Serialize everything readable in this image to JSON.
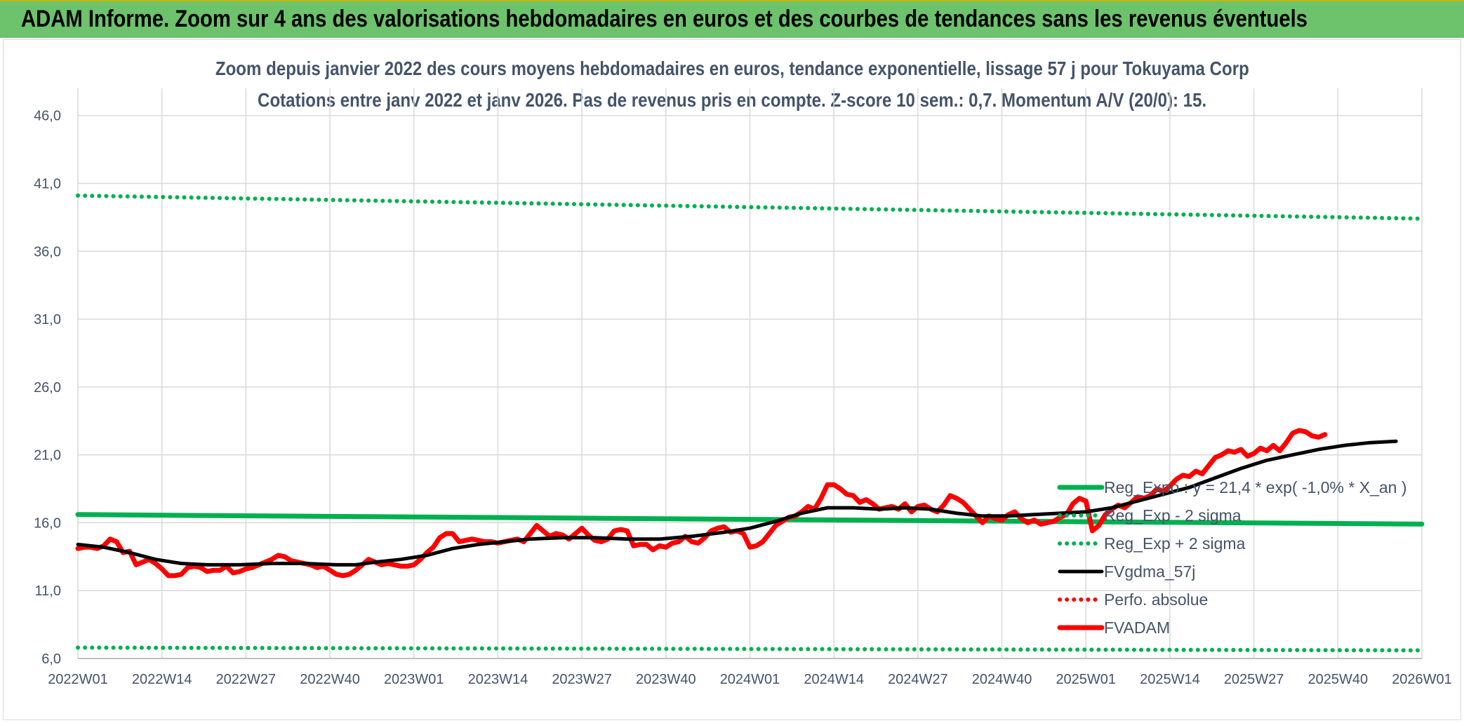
{
  "banner": {
    "title": "ADAM Informe. Zoom sur 4 ans des valorisations hebdomadaires en euros et des courbes de tendances sans les revenus éventuels"
  },
  "chart_data": {
    "type": "line",
    "title": "Zoom depuis janvier 2022 des cours moyens hebdomadaires en euros, tendance exponentielle, lissage 57 j pour Tokuyama Corp",
    "subtitle": "Cotations entre janv 2022 et janv 2026. Pas de revenus pris en compte. Z-score 10 sem.: 0,7. Momentum A/V (20/0): 15.",
    "ylim": [
      6,
      48
    ],
    "y_ticks": [
      "6,0",
      "11,0",
      "16,0",
      "21,0",
      "26,0",
      "31,0",
      "36,0",
      "41,0",
      "46,0"
    ],
    "y_tick_values": [
      6,
      11,
      16,
      21,
      26,
      31,
      36,
      41,
      46
    ],
    "x_ticks": [
      "2022W01",
      "2022W14",
      "2022W27",
      "2022W40",
      "2023W01",
      "2023W14",
      "2023W27",
      "2023W40",
      "2024W01",
      "2024W14",
      "2024W27",
      "2024W40",
      "2025W01",
      "2025W14",
      "2025W27",
      "2025W40",
      "2026W01"
    ],
    "x_range_weeks": [
      0,
      208
    ],
    "grid": true,
    "legend_position": "right",
    "series": [
      {
        "name": "Reg_Expo : y = 21,4 * exp( -1,0% *  X_an )",
        "color": "#00b050",
        "style": "solid",
        "points": [
          [
            0,
            16.6
          ],
          [
            208,
            15.9
          ]
        ]
      },
      {
        "name": "Reg_Exp - 2 sigma",
        "color": "#00b050",
        "style": "dotted",
        "points": [
          [
            0,
            6.8
          ],
          [
            208,
            6.6
          ]
        ]
      },
      {
        "name": "Reg_Exp + 2 sigma",
        "color": "#00b050",
        "style": "dotted",
        "points": [
          [
            0,
            40.1
          ],
          [
            208,
            38.4
          ]
        ]
      },
      {
        "name": "FVgdma_57j",
        "color": "#000000",
        "style": "solid",
        "points": [
          [
            0,
            14.4
          ],
          [
            4,
            14.2
          ],
          [
            8,
            13.8
          ],
          [
            12,
            13.3
          ],
          [
            16,
            13.0
          ],
          [
            20,
            12.9
          ],
          [
            25,
            12.9
          ],
          [
            30,
            13.0
          ],
          [
            35,
            13.0
          ],
          [
            40,
            12.9
          ],
          [
            43,
            12.9
          ],
          [
            46,
            13.1
          ],
          [
            50,
            13.3
          ],
          [
            54,
            13.6
          ],
          [
            58,
            14.1
          ],
          [
            62,
            14.4
          ],
          [
            66,
            14.6
          ],
          [
            70,
            14.8
          ],
          [
            75,
            14.9
          ],
          [
            80,
            14.9
          ],
          [
            85,
            14.8
          ],
          [
            90,
            14.8
          ],
          [
            95,
            15.0
          ],
          [
            100,
            15.3
          ],
          [
            104,
            15.6
          ],
          [
            108,
            16.1
          ],
          [
            112,
            16.7
          ],
          [
            116,
            17.1
          ],
          [
            120,
            17.1
          ],
          [
            124,
            17.0
          ],
          [
            128,
            17.1
          ],
          [
            132,
            17.0
          ],
          [
            136,
            16.7
          ],
          [
            140,
            16.5
          ],
          [
            144,
            16.5
          ],
          [
            148,
            16.6
          ],
          [
            152,
            16.7
          ],
          [
            156,
            16.8
          ],
          [
            160,
            17.1
          ],
          [
            164,
            17.6
          ],
          [
            168,
            18.1
          ],
          [
            172,
            18.6
          ],
          [
            176,
            19.3
          ],
          [
            180,
            20.0
          ],
          [
            184,
            20.6
          ],
          [
            188,
            21.0
          ],
          [
            192,
            21.4
          ],
          [
            196,
            21.7
          ],
          [
            200,
            21.9
          ],
          [
            204,
            22.0
          ]
        ]
      },
      {
        "name": "Perfo. absolue",
        "color": "#ff0000",
        "style": "dotted",
        "points": []
      },
      {
        "name": "FVADAM",
        "color": "#ff0000",
        "style": "solid",
        "points": [
          [
            0,
            14.1
          ],
          [
            1,
            14.2
          ],
          [
            2,
            14.2
          ],
          [
            3,
            14.1
          ],
          [
            4,
            14.3
          ],
          [
            5,
            14.8
          ],
          [
            6,
            14.6
          ],
          [
            7,
            13.8
          ],
          [
            8,
            13.9
          ],
          [
            9,
            12.9
          ],
          [
            10,
            13.1
          ],
          [
            11,
            13.3
          ],
          [
            12,
            13.0
          ],
          [
            13,
            12.6
          ],
          [
            14,
            12.1
          ],
          [
            15,
            12.1
          ],
          [
            16,
            12.2
          ],
          [
            17,
            12.7
          ],
          [
            18,
            12.8
          ],
          [
            19,
            12.7
          ],
          [
            20,
            12.4
          ],
          [
            21,
            12.5
          ],
          [
            22,
            12.5
          ],
          [
            23,
            12.8
          ],
          [
            24,
            12.3
          ],
          [
            25,
            12.4
          ],
          [
            26,
            12.6
          ],
          [
            27,
            12.7
          ],
          [
            28,
            12.9
          ],
          [
            29,
            13.1
          ],
          [
            30,
            13.3
          ],
          [
            31,
            13.6
          ],
          [
            32,
            13.5
          ],
          [
            33,
            13.2
          ],
          [
            34,
            13.1
          ],
          [
            35,
            13.0
          ],
          [
            36,
            12.9
          ],
          [
            37,
            12.7
          ],
          [
            38,
            12.8
          ],
          [
            39,
            12.5
          ],
          [
            40,
            12.2
          ],
          [
            41,
            12.1
          ],
          [
            42,
            12.2
          ],
          [
            43,
            12.5
          ],
          [
            44,
            12.9
          ],
          [
            45,
            13.3
          ],
          [
            46,
            13.1
          ],
          [
            47,
            12.9
          ],
          [
            48,
            13.0
          ],
          [
            49,
            12.9
          ],
          [
            50,
            12.8
          ],
          [
            51,
            12.8
          ],
          [
            52,
            12.9
          ],
          [
            53,
            13.3
          ],
          [
            54,
            13.8
          ],
          [
            55,
            14.2
          ],
          [
            56,
            14.9
          ],
          [
            57,
            15.2
          ],
          [
            58,
            15.2
          ],
          [
            59,
            14.6
          ],
          [
            60,
            14.7
          ],
          [
            61,
            14.8
          ],
          [
            62,
            14.7
          ],
          [
            63,
            14.6
          ],
          [
            64,
            14.6
          ],
          [
            65,
            14.5
          ],
          [
            66,
            14.6
          ],
          [
            67,
            14.7
          ],
          [
            68,
            14.8
          ],
          [
            69,
            14.6
          ],
          [
            70,
            15.2
          ],
          [
            71,
            15.8
          ],
          [
            72,
            15.4
          ],
          [
            73,
            15.0
          ],
          [
            74,
            15.2
          ],
          [
            75,
            15.1
          ],
          [
            76,
            14.8
          ],
          [
            77,
            15.2
          ],
          [
            78,
            15.6
          ],
          [
            79,
            15.1
          ],
          [
            80,
            14.7
          ],
          [
            81,
            14.6
          ],
          [
            82,
            14.8
          ],
          [
            83,
            15.4
          ],
          [
            84,
            15.5
          ],
          [
            85,
            15.4
          ],
          [
            86,
            14.3
          ],
          [
            87,
            14.4
          ],
          [
            88,
            14.4
          ],
          [
            89,
            14.0
          ],
          [
            90,
            14.3
          ],
          [
            91,
            14.2
          ],
          [
            92,
            14.5
          ],
          [
            93,
            14.6
          ],
          [
            94,
            15.0
          ],
          [
            95,
            14.6
          ],
          [
            96,
            14.5
          ],
          [
            97,
            14.9
          ],
          [
            98,
            15.4
          ],
          [
            99,
            15.6
          ],
          [
            100,
            15.7
          ],
          [
            101,
            15.3
          ],
          [
            102,
            15.4
          ],
          [
            103,
            15.2
          ],
          [
            104,
            14.2
          ],
          [
            105,
            14.3
          ],
          [
            106,
            14.6
          ],
          [
            107,
            15.2
          ],
          [
            108,
            15.8
          ],
          [
            109,
            16.1
          ],
          [
            110,
            16.4
          ],
          [
            111,
            16.5
          ],
          [
            112,
            16.8
          ],
          [
            113,
            17.2
          ],
          [
            114,
            17.0
          ],
          [
            115,
            17.8
          ],
          [
            116,
            18.8
          ],
          [
            117,
            18.8
          ],
          [
            118,
            18.5
          ],
          [
            119,
            18.1
          ],
          [
            120,
            18.0
          ],
          [
            121,
            17.5
          ],
          [
            122,
            17.7
          ],
          [
            123,
            17.4
          ],
          [
            124,
            17.0
          ],
          [
            125,
            17.1
          ],
          [
            126,
            17.2
          ],
          [
            127,
            17.0
          ],
          [
            128,
            17.4
          ],
          [
            129,
            16.8
          ],
          [
            130,
            17.2
          ],
          [
            131,
            17.3
          ],
          [
            132,
            17.0
          ],
          [
            133,
            16.8
          ],
          [
            134,
            17.3
          ],
          [
            135,
            18.0
          ],
          [
            136,
            17.8
          ],
          [
            137,
            17.5
          ],
          [
            138,
            17.0
          ],
          [
            139,
            16.5
          ],
          [
            140,
            16.0
          ],
          [
            141,
            16.5
          ],
          [
            142,
            16.3
          ],
          [
            143,
            16.2
          ],
          [
            144,
            16.6
          ],
          [
            145,
            16.8
          ],
          [
            146,
            16.3
          ],
          [
            147,
            16.0
          ],
          [
            148,
            16.2
          ],
          [
            149,
            15.9
          ],
          [
            150,
            16.0
          ],
          [
            151,
            16.1
          ],
          [
            152,
            16.4
          ],
          [
            153,
            16.6
          ],
          [
            154,
            17.4
          ],
          [
            155,
            17.8
          ],
          [
            156,
            17.6
          ],
          [
            157,
            15.4
          ],
          [
            158,
            15.8
          ],
          [
            159,
            16.6
          ],
          [
            160,
            17.0
          ],
          [
            161,
            17.3
          ],
          [
            162,
            17.1
          ],
          [
            163,
            17.5
          ],
          [
            164,
            17.9
          ],
          [
            165,
            17.8
          ],
          [
            166,
            18.0
          ],
          [
            167,
            18.5
          ],
          [
            168,
            18.3
          ],
          [
            169,
            18.7
          ],
          [
            170,
            19.2
          ],
          [
            171,
            19.5
          ],
          [
            172,
            19.4
          ],
          [
            173,
            19.8
          ],
          [
            174,
            19.6
          ],
          [
            175,
            20.2
          ],
          [
            176,
            20.8
          ],
          [
            177,
            21.0
          ],
          [
            178,
            21.3
          ],
          [
            179,
            21.2
          ],
          [
            180,
            21.4
          ],
          [
            181,
            20.9
          ],
          [
            182,
            21.1
          ],
          [
            183,
            21.5
          ],
          [
            184,
            21.3
          ],
          [
            185,
            21.7
          ],
          [
            186,
            21.3
          ],
          [
            187,
            21.9
          ],
          [
            188,
            22.6
          ],
          [
            189,
            22.8
          ],
          [
            190,
            22.7
          ],
          [
            191,
            22.4
          ],
          [
            192,
            22.3
          ],
          [
            193,
            22.5
          ]
        ]
      }
    ]
  }
}
